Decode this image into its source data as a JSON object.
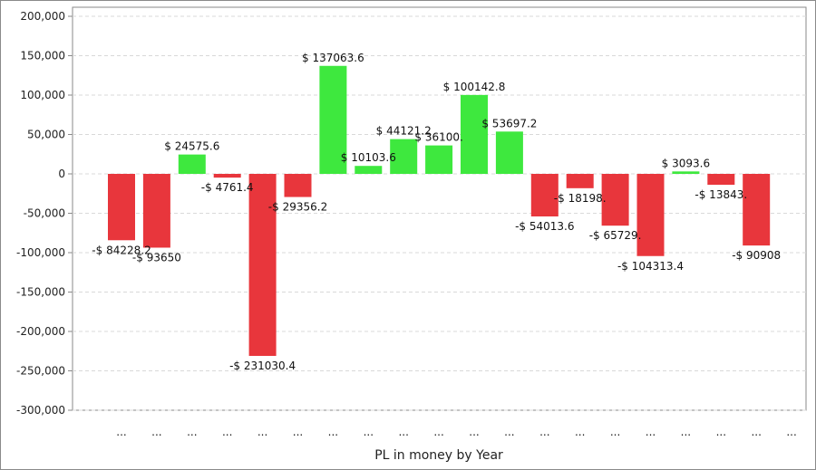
{
  "chart_data": {
    "type": "bar",
    "title": "",
    "xlabel": "PL in money by Year",
    "ylabel": "",
    "ylim": [
      -300000,
      200000
    ],
    "y_ticks": [
      "200,000",
      "150,000",
      "100,000",
      "50,000",
      "0",
      "-50,000",
      "-100,000",
      "-150,000",
      "-200,000",
      "-250,000",
      "-300,000"
    ],
    "y_tick_values": [
      200000,
      150000,
      100000,
      50000,
      0,
      -50000,
      -100000,
      -150000,
      -200000,
      -250000,
      -300000
    ],
    "grid": true,
    "legend": "none",
    "categories": [
      "...",
      "...",
      "...",
      "...",
      "...",
      "...",
      "...",
      "...",
      "...",
      "...",
      "...",
      "...",
      "...",
      "...",
      "...",
      "...",
      "...",
      "...",
      "...",
      "..."
    ],
    "values": [
      -84228.2,
      -93650,
      24575.6,
      -4761.4,
      -231030.4,
      -29356.2,
      137063.6,
      10103.6,
      44121.2,
      36100,
      100142.8,
      53697.2,
      -54013.6,
      -18198,
      -65729,
      -104313.4,
      3093.6,
      -13843,
      -90908,
      0
    ],
    "data_labels": [
      "-$ 84228.2",
      "-$ 93650",
      "$ 24575.6",
      "-$ 4761.4",
      "-$ 231030.4",
      "-$ 29356.2",
      "$ 137063.6",
      "$ 10103.6",
      "$ 44121.2",
      "$ 36100.",
      "$ 100142.8",
      "$ 53697.2",
      "-$ 54013.6",
      "-$ 18198.",
      "-$ 65729.",
      "-$ 104313.4",
      "$ 3093.6",
      "-$ 13843.",
      "-$ 90908",
      ""
    ],
    "colors": {
      "positive": "#3ee83e",
      "negative": "#e8363c",
      "grid": "#d9d9d9",
      "axis": "#8a8a8a"
    }
  }
}
